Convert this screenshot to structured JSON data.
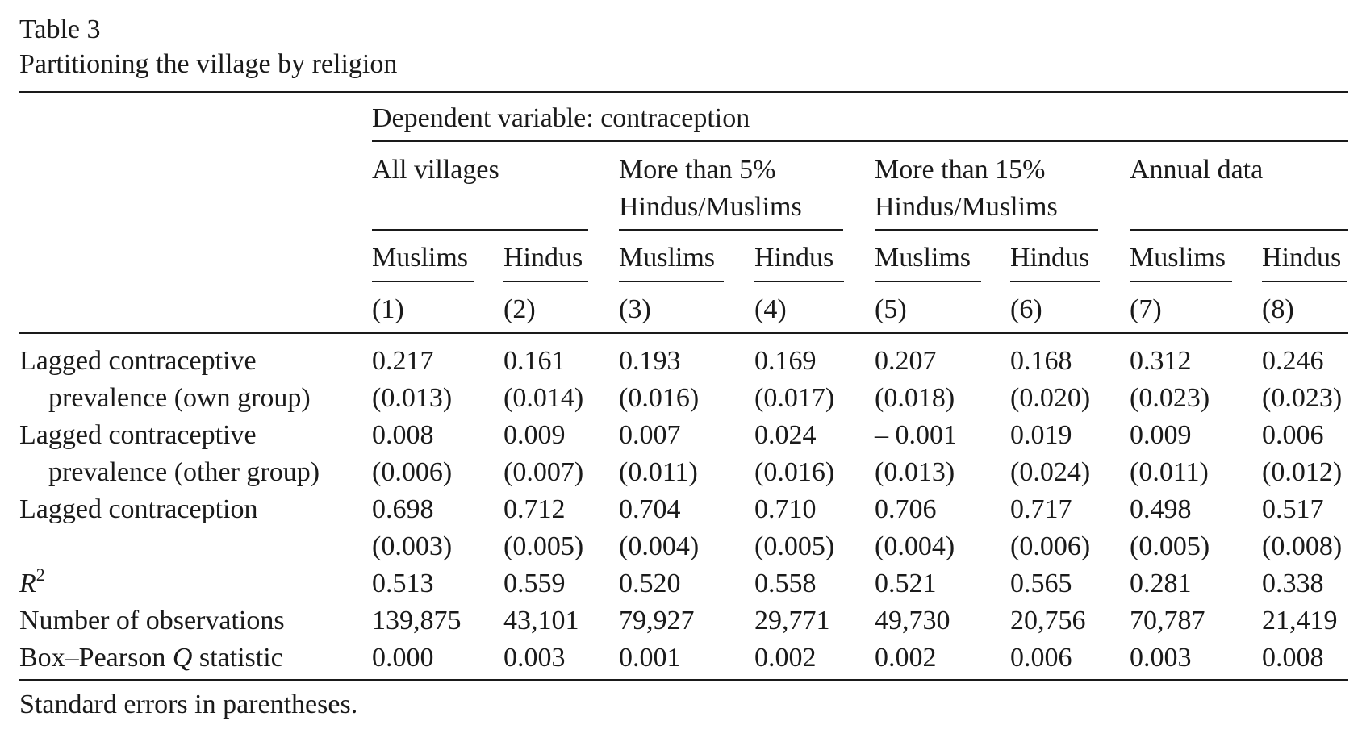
{
  "table_label": "Table 3",
  "title": "Partitioning the village by religion",
  "dependent_variable": "Dependent variable: contraception",
  "groups": [
    [
      "All villages",
      ""
    ],
    [
      "More than 5%",
      "Hindus/Muslims"
    ],
    [
      "More than 15%",
      "Hindus/Muslims"
    ],
    [
      "Annual data",
      ""
    ]
  ],
  "subheaders": [
    "Muslims",
    "Hindus",
    "Muslims",
    "Hindus",
    "Muslims",
    "Hindus",
    "Muslims",
    "Hindus"
  ],
  "col_numbers": [
    "(1)",
    "(2)",
    "(3)",
    "(4)",
    "(5)",
    "(6)",
    "(7)",
    "(8)"
  ],
  "rows": [
    {
      "label": [
        "Lagged contraceptive",
        "prevalence (own group)"
      ],
      "values": [
        "0.217",
        "0.161",
        "0.193",
        "0.169",
        "0.207",
        "0.168",
        "0.312",
        "0.246"
      ],
      "se": [
        "(0.013)",
        "(0.014)",
        "(0.016)",
        "(0.017)",
        "(0.018)",
        "(0.020)",
        "(0.023)",
        "(0.023)"
      ]
    },
    {
      "label": [
        "Lagged contraceptive",
        "prevalence (other group)"
      ],
      "values": [
        "0.008",
        "0.009",
        "0.007",
        "0.024",
        "– 0.001",
        "0.019",
        "0.009",
        "0.006"
      ],
      "se": [
        "(0.006)",
        "(0.007)",
        "(0.011)",
        "(0.016)",
        "(0.013)",
        "(0.024)",
        "(0.011)",
        "(0.012)"
      ]
    },
    {
      "label": [
        "Lagged contraception",
        ""
      ],
      "values": [
        "0.698",
        "0.712",
        "0.704",
        "0.710",
        "0.706",
        "0.717",
        "0.498",
        "0.517"
      ],
      "se": [
        "(0.003)",
        "(0.005)",
        "(0.004)",
        "(0.005)",
        "(0.004)",
        "(0.006)",
        "(0.005)",
        "(0.008)"
      ]
    }
  ],
  "stats": [
    {
      "label": "R",
      "sup": "2",
      "values": [
        "0.513",
        "0.559",
        "0.520",
        "0.558",
        "0.521",
        "0.565",
        "0.281",
        "0.338"
      ]
    },
    {
      "label": "Number of observations",
      "values": [
        "139,875",
        "43,101",
        "79,927",
        "29,771",
        "49,730",
        "20,756",
        "70,787",
        "21,419"
      ]
    },
    {
      "label": "Box–Pearson Q statistic",
      "values": [
        "0.000",
        "0.003",
        "0.001",
        "0.002",
        "0.002",
        "0.006",
        "0.003",
        "0.008"
      ]
    }
  ],
  "note": "Standard errors in parentheses."
}
